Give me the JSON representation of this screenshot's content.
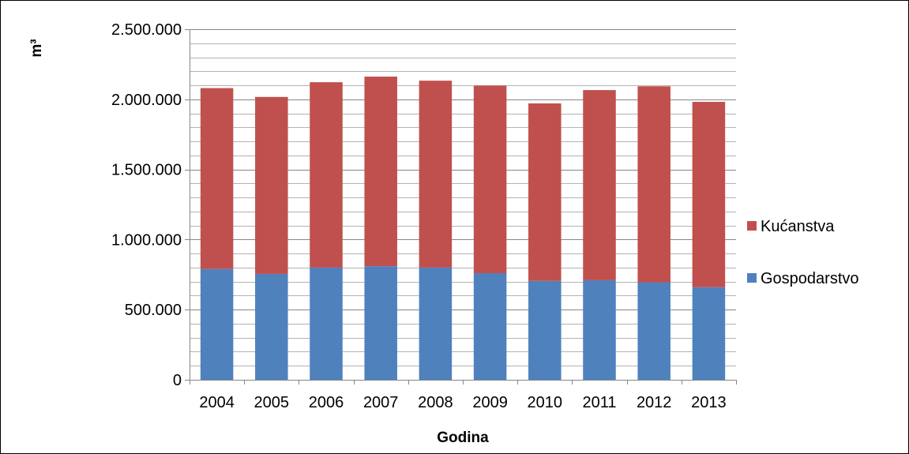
{
  "chart_data": {
    "type": "bar",
    "stacked": true,
    "categories": [
      "2004",
      "2005",
      "2006",
      "2007",
      "2008",
      "2009",
      "2010",
      "2011",
      "2012",
      "2013"
    ],
    "series": [
      {
        "name": "Gospodarstvo",
        "color": "#4f81bd",
        "values": [
          790000,
          755000,
          800000,
          810000,
          800000,
          760000,
          705000,
          710000,
          695000,
          660000
        ]
      },
      {
        "name": "Kućanstva",
        "color": "#c0504d",
        "values": [
          1290000,
          1262000,
          1322000,
          1352000,
          1333000,
          1338000,
          1266000,
          1356000,
          1398000,
          1322000
        ]
      }
    ],
    "xlabel": "Godina",
    "ylabel": "m³",
    "ylim": [
      0,
      2500000
    ],
    "yticks": [
      0,
      500000,
      1000000,
      1500000,
      2000000,
      2500000
    ],
    "ytick_labels": [
      "0",
      "500.000",
      "1.000.000",
      "1.500.000",
      "2.000.000",
      "2.500.000"
    ],
    "minor_step": 100000,
    "grid": true,
    "legend_position": "right",
    "legend_order": [
      "Kućanstva",
      "Gospodarstvo"
    ]
  }
}
